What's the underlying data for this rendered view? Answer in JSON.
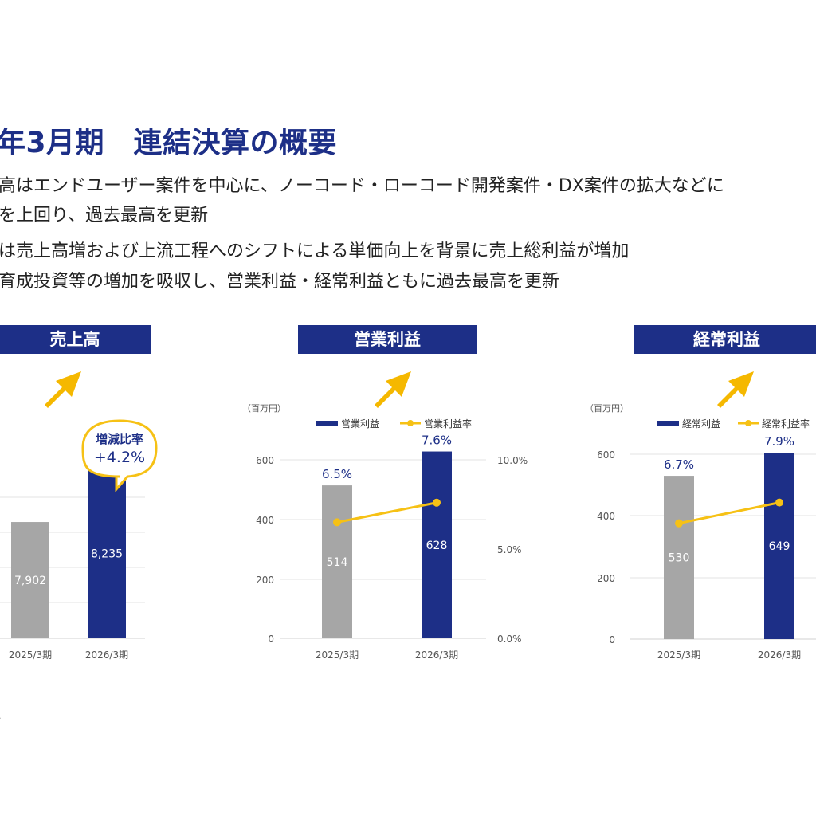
{
  "page": {
    "title": "年3月期　連結決算の概要",
    "bullets": [
      "高はエンドユーザー案件を中心に、ノーコード・ローコード開発案件・DX案件の拡大などに",
      "を上回り、過去最高を更新",
      "は売上高増および上流工程へのシフトによる単価向上を背景に売上総利益が増加",
      "育成投資等の増加を吸収し、営業利益・経常利益ともに過去最高を更新"
    ],
    "footnote": "."
  },
  "colors": {
    "navy": "#1d2f87",
    "gray": "#a6a6a6",
    "yellow": "#f6c115",
    "arrow": "#f5b800"
  },
  "chart_data": [
    {
      "type": "bar",
      "panel_title": "売上高",
      "categories": [
        "2025/3期",
        "2026/3期"
      ],
      "values": [
        7902,
        8235
      ],
      "value_labels": [
        "7,902",
        "8,235"
      ],
      "bar_colors": [
        "#a6a6a6",
        "#1d2f87"
      ],
      "callout": {
        "title": "増減比率",
        "value": "+4.2%"
      }
    },
    {
      "type": "bar",
      "panel_title": "営業利益",
      "unit_label": "（百万円）",
      "categories": [
        "2025/3期",
        "2026/3期"
      ],
      "series": [
        {
          "name": "営業利益",
          "type": "bar",
          "values": [
            514,
            628
          ],
          "value_labels": [
            "514",
            "628"
          ]
        },
        {
          "name": "営業利益率",
          "type": "line",
          "values": [
            6.5,
            7.6
          ],
          "value_labels": [
            "6.5%",
            "7.6%"
          ]
        }
      ],
      "ylim": [
        0,
        600
      ],
      "yticks": [
        "0",
        "200",
        "400",
        "600"
      ],
      "y2lim": [
        0,
        10
      ],
      "y2ticks": [
        "0.0%",
        "5.0%",
        "10.0%"
      ],
      "bar_colors": [
        "#a6a6a6",
        "#1d2f87"
      ]
    },
    {
      "type": "bar",
      "panel_title": "経常利益",
      "unit_label": "（百万円）",
      "categories": [
        "2025/3期",
        "2026/3期"
      ],
      "series": [
        {
          "name": "経常利益",
          "type": "bar",
          "values": [
            530,
            649
          ],
          "value_labels": [
            "530",
            "649"
          ]
        },
        {
          "name": "経常利益率",
          "type": "line",
          "values": [
            6.7,
            7.9
          ],
          "value_labels": [
            "6.7%",
            "7.9%"
          ]
        }
      ],
      "ylim": [
        0,
        600
      ],
      "yticks": [
        "0",
        "200",
        "400",
        "600"
      ],
      "bar_colors": [
        "#a6a6a6",
        "#1d2f87"
      ]
    }
  ]
}
